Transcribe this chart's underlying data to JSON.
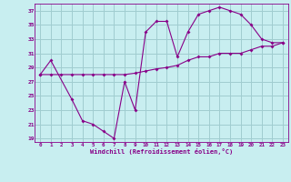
{
  "xlabel": "Windchill (Refroidissement éolien,°C)",
  "bg_color": "#c8eef0",
  "line_color": "#880088",
  "grid_color": "#a0ccd0",
  "xlim": [
    -0.5,
    23.5
  ],
  "ylim": [
    18.5,
    38
  ],
  "xticks": [
    0,
    1,
    2,
    3,
    4,
    5,
    6,
    7,
    8,
    9,
    10,
    11,
    12,
    13,
    14,
    15,
    16,
    17,
    18,
    19,
    20,
    21,
    22,
    23
  ],
  "yticks": [
    19,
    21,
    23,
    25,
    27,
    29,
    31,
    33,
    35,
    37
  ],
  "line1_x": [
    0,
    1,
    3,
    4,
    5,
    6,
    7,
    8,
    9,
    10,
    11,
    12,
    13,
    14,
    15,
    16,
    17,
    18,
    19,
    20,
    21,
    22,
    23
  ],
  "line1_y": [
    28,
    30,
    24.5,
    21.5,
    21,
    20,
    19,
    27,
    23,
    34,
    35.5,
    35.5,
    30.5,
    34,
    36.5,
    37,
    37.5,
    37,
    36.5,
    35,
    33,
    32.5,
    32.5
  ],
  "line2_x": [
    0,
    1,
    2,
    3,
    4,
    5,
    6,
    7,
    8,
    9,
    10,
    11,
    12,
    13,
    14,
    15,
    16,
    17,
    18,
    19,
    20,
    21,
    22,
    23
  ],
  "line2_y": [
    28,
    28,
    28,
    28,
    28,
    28,
    28,
    28,
    28,
    28.2,
    28.5,
    28.8,
    29,
    29.3,
    30,
    30.5,
    30.5,
    31,
    31,
    31,
    31.5,
    32,
    32,
    32.5
  ]
}
